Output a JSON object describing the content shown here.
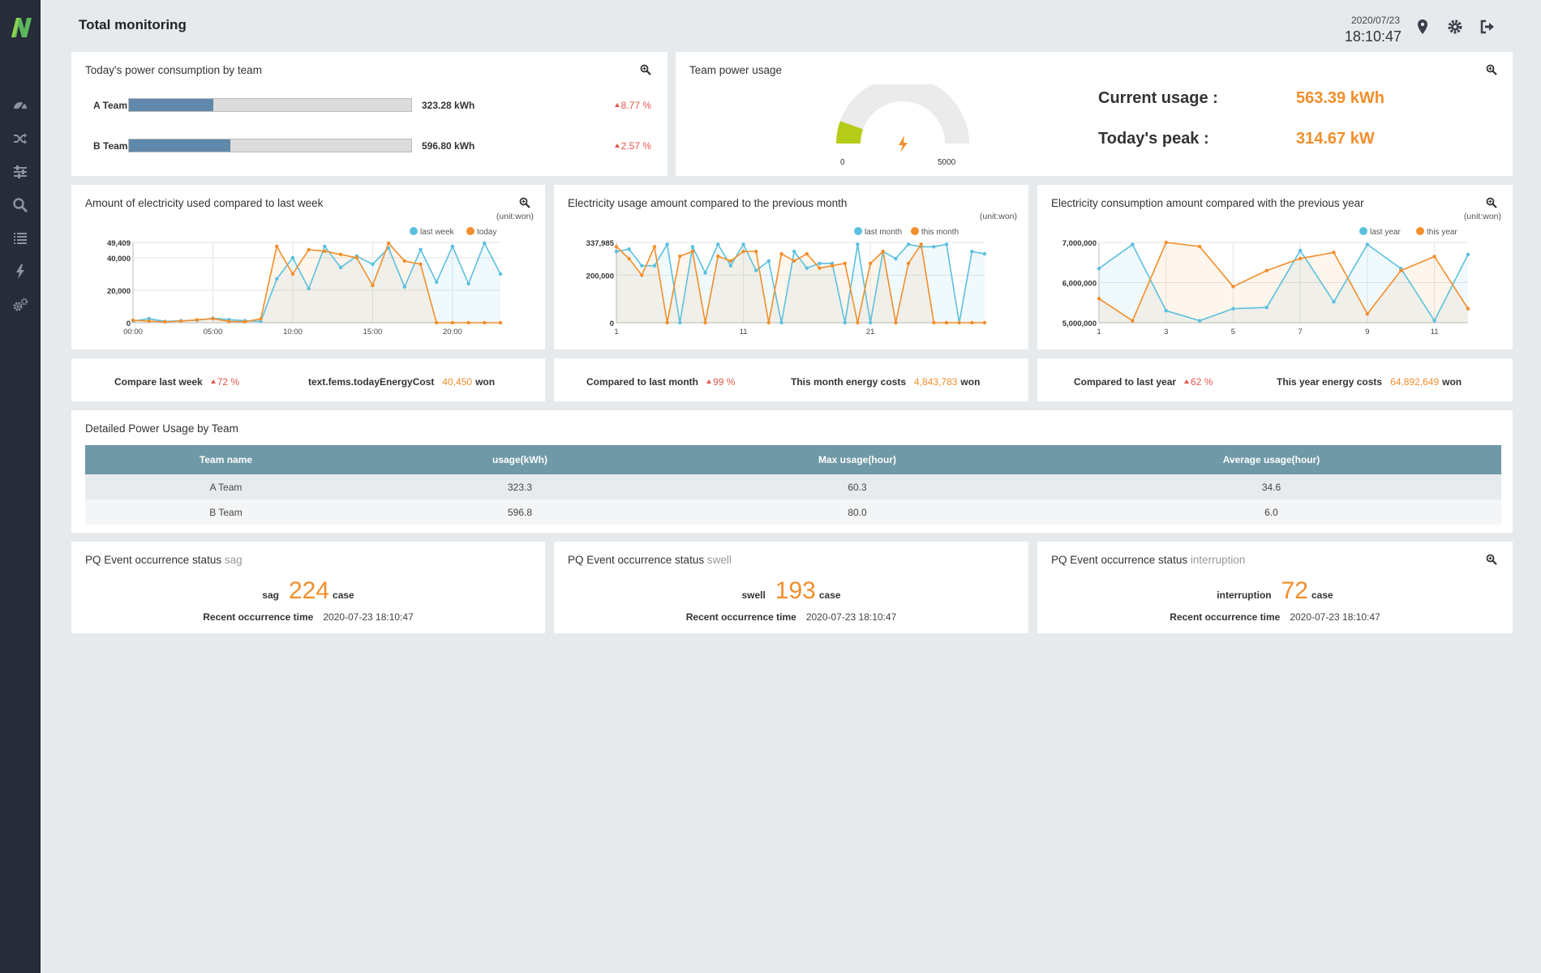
{
  "header": {
    "title": "Total monitoring",
    "date": "2020/07/23",
    "time": "18:10:47",
    "icons": [
      "map-marker-icon",
      "gear-icon",
      "logout-icon"
    ]
  },
  "sidebar": {
    "logo": "N",
    "items": [
      "dashboard-icon",
      "shuffle-icon",
      "sliders-icon",
      "search-icon",
      "list-icon",
      "bolt-icon",
      "cogs-icon"
    ]
  },
  "colors": {
    "accent": "#f28e2b",
    "blue": "#5bc0de",
    "bar": "#5f88ab",
    "red": "#e2564b",
    "gauge": "#b5cc18",
    "table_head": "#6f99a6"
  },
  "consumption": {
    "title": "Today's power consumption by team",
    "teams": [
      {
        "name": "A Team",
        "value": "323.28 kWh",
        "pct": "8.77 %",
        "fill": 0.3
      },
      {
        "name": "B Team",
        "value": "596.80 kWh",
        "pct": "2.57 %",
        "fill": 0.36
      }
    ]
  },
  "power_usage": {
    "title": "Team power usage",
    "gauge_min": "0",
    "gauge_max": "5000",
    "gauge_fraction": 0.11,
    "current_label": "Current usage :",
    "current_value": "563.39 kWh",
    "peak_label": "Today's peak :",
    "peak_value": "314.67 kW"
  },
  "chart_data": [
    {
      "type": "line",
      "title": "Amount of electricity used compared to last week",
      "unit": "(unit:won)",
      "x_ticks": [
        "00:00",
        "05:00",
        "10:00",
        "15:00",
        "20:00"
      ],
      "y_ticks": [
        "0",
        "20,000",
        "40,000",
        "49,409"
      ],
      "ylim": [
        0,
        49409
      ],
      "series": [
        {
          "name": "last week",
          "color": "#5bc0de",
          "values": [
            1000,
            2500,
            800,
            1200,
            1500,
            2800,
            1900,
            1200,
            800,
            27000,
            40000,
            21000,
            47000,
            34000,
            41000,
            36000,
            46000,
            22000,
            45000,
            25000,
            47000,
            24000,
            49000,
            30000
          ]
        },
        {
          "name": "today",
          "color": "#f28e2b",
          "values": [
            1500,
            1000,
            500,
            1000,
            1800,
            2500,
            800,
            600,
            2400,
            47000,
            30000,
            45000,
            44000,
            42000,
            40000,
            23000,
            49000,
            38000,
            36000,
            0,
            0,
            0,
            0,
            0
          ]
        }
      ]
    },
    {
      "type": "line",
      "title": "Electricity usage amount compared to the previous month",
      "unit": "(unit:won)",
      "x_ticks": [
        "1",
        "11",
        "21"
      ],
      "y_ticks": [
        "0",
        "200,000",
        "337,985"
      ],
      "ylim": [
        0,
        337985
      ],
      "series": [
        {
          "name": "last month",
          "color": "#5bc0de",
          "values": [
            300000,
            310000,
            240000,
            240000,
            330000,
            0,
            320000,
            210000,
            330000,
            240000,
            330000,
            220000,
            260000,
            0,
            300000,
            230000,
            250000,
            250000,
            0,
            330000,
            0,
            300000,
            270000,
            330000,
            320000,
            320000,
            330000,
            0,
            300000,
            290000
          ]
        },
        {
          "name": "this month",
          "color": "#f28e2b",
          "values": [
            320000,
            270000,
            200000,
            320000,
            0,
            280000,
            300000,
            0,
            280000,
            260000,
            300000,
            300000,
            0,
            290000,
            260000,
            290000,
            230000,
            240000,
            250000,
            0,
            250000,
            300000,
            0,
            250000,
            330000,
            0,
            0,
            0,
            0,
            0
          ]
        }
      ]
    },
    {
      "type": "line",
      "title": "Electricity consumption amount compared with the previous year",
      "unit": "(unit:won)",
      "x_ticks": [
        "1",
        "3",
        "5",
        "7",
        "9",
        "11"
      ],
      "y_ticks": [
        "5,000,000",
        "6,000,000",
        "7,000,000"
      ],
      "ylim": [
        5000000,
        7000000
      ],
      "series": [
        {
          "name": "last year",
          "color": "#5bc0de",
          "values": [
            6350000,
            6950000,
            5300000,
            5050000,
            5350000,
            5380000,
            6800000,
            5520000,
            6950000,
            6350000,
            5050000,
            6700000
          ]
        },
        {
          "name": "this year",
          "color": "#f28e2b",
          "values": [
            5600000,
            5050000,
            7000000,
            6900000,
            5900000,
            6300000,
            6600000,
            6750000,
            5220000,
            6300000,
            6650000,
            5350000
          ]
        }
      ]
    }
  ],
  "compare": [
    {
      "label1": "Compare last week",
      "pct": "72 %",
      "label2": "text.fems.todayEnergyCost",
      "value": "40,450",
      "unit": "won"
    },
    {
      "label1": "Compared to last month",
      "pct": "99 %",
      "label2": "This month energy costs",
      "value": "4,843,783",
      "unit": "won"
    },
    {
      "label1": "Compared to last year",
      "pct": "62 %",
      "label2": "This year energy costs",
      "value": "64,892,649",
      "unit": "won"
    }
  ],
  "table": {
    "title": "Detailed Power Usage by Team",
    "columns": [
      "Team name",
      "usage(kWh)",
      "Max usage(hour)",
      "Average usage(hour)"
    ],
    "rows": [
      [
        "A Team",
        "323.3",
        "60.3",
        "34.6"
      ],
      [
        "B Team",
        "596.8",
        "80.0",
        "6.0"
      ]
    ]
  },
  "pq": {
    "title": "PQ Event occurrence status",
    "recent_label": "Recent occurrence time",
    "case_label": "case",
    "events": [
      {
        "type": "sag",
        "count": "224",
        "time": "2020-07-23 18:10:47"
      },
      {
        "type": "swell",
        "count": "193",
        "time": "2020-07-23 18:10:47"
      },
      {
        "type": "interruption",
        "count": "72",
        "time": "2020-07-23 18:10:47"
      }
    ]
  }
}
